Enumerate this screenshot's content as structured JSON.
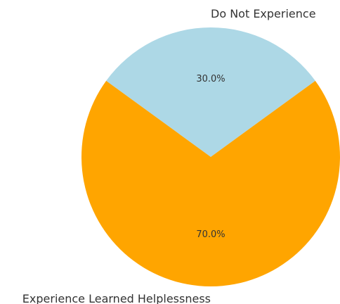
{
  "chart_data": {
    "type": "pie",
    "title": "",
    "categories": [
      "Do Not Experience",
      "Experience Learned Helplessness"
    ],
    "values": [
      30.0,
      70.0
    ],
    "labels": [
      "30.0%",
      "70.0%"
    ],
    "colors": [
      "#add8e6",
      "#ffa500"
    ],
    "start_angle_deg": 36,
    "direction": "counterclockwise",
    "legend": "none"
  }
}
